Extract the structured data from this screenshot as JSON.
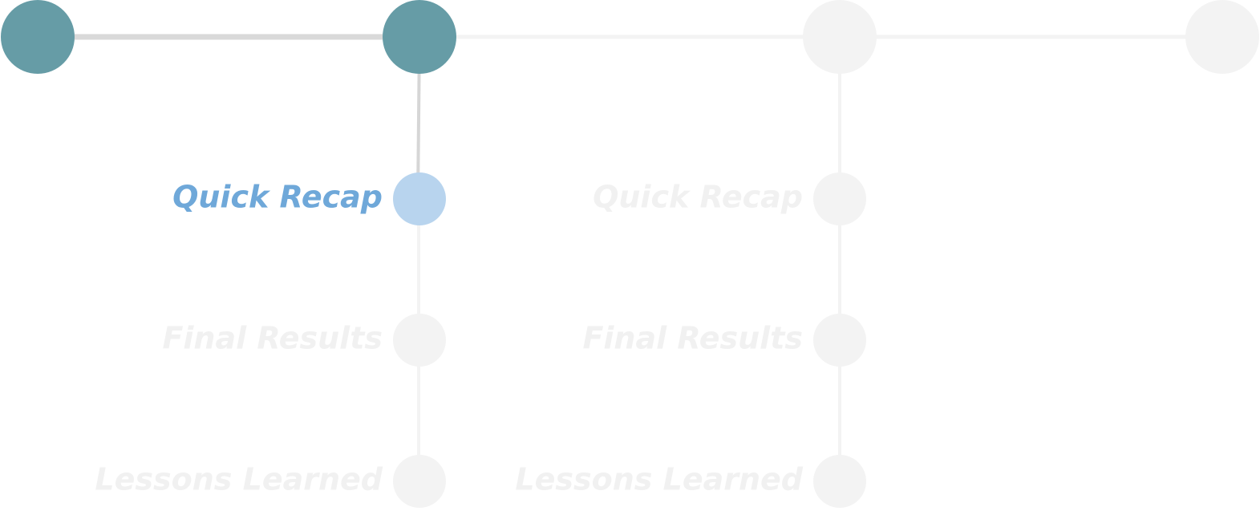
{
  "steps": [
    {
      "substeps": []
    },
    {
      "substeps": [
        {
          "label": "Quick Recap",
          "state": "active"
        },
        {
          "label": "Final Results",
          "state": "pending"
        },
        {
          "label": "Lessons Learned",
          "state": "pending"
        }
      ]
    },
    {
      "substeps": [
        {
          "label": "Quick Recap",
          "state": "pending"
        },
        {
          "label": "Final Results",
          "state": "pending"
        },
        {
          "label": "Lessons Learned",
          "state": "pending"
        }
      ]
    },
    {
      "substeps": []
    }
  ]
}
